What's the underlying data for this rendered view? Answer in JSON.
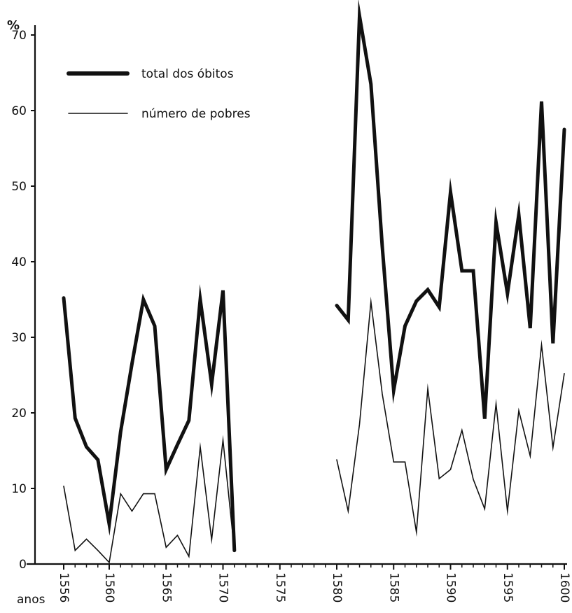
{
  "chart_data": {
    "type": "line",
    "title": "",
    "ylabel": "%",
    "xlabel": "anos",
    "xlim": [
      1556,
      1600
    ],
    "ylim": [
      0,
      70
    ],
    "xticks": [
      1556,
      1560,
      1565,
      1570,
      1575,
      1580,
      1585,
      1590,
      1595,
      1600
    ],
    "yticks": [
      0,
      10,
      20,
      30,
      40,
      50,
      60,
      70
    ],
    "legend_position": "top-left",
    "grid": false,
    "series": [
      {
        "name": "total dos óbitos",
        "style": "thick",
        "color": "#111111",
        "segments": [
          [
            [
              1556,
              35.2
            ],
            [
              1557,
              19.3
            ],
            [
              1558,
              15.5
            ],
            [
              1559,
              13.8
            ],
            [
              1560,
              5.3
            ],
            [
              1561,
              17.5
            ],
            [
              1562,
              26.5
            ],
            [
              1563,
              35.0
            ],
            [
              1564,
              31.5
            ],
            [
              1565,
              12.5
            ],
            [
              1566,
              15.8
            ],
            [
              1567,
              19.0
            ],
            [
              1568,
              35.0
            ],
            [
              1569,
              23.8
            ],
            [
              1570,
              36.2
            ],
            [
              1571,
              1.8
            ]
          ],
          [
            [
              1580,
              34.2
            ],
            [
              1581,
              32.3
            ],
            [
              1582,
              72.5
            ],
            [
              1583,
              63.5
            ],
            [
              1584,
              42.0
            ],
            [
              1585,
              23.0
            ],
            [
              1586,
              31.5
            ],
            [
              1587,
              34.8
            ],
            [
              1588,
              36.3
            ],
            [
              1589,
              34.0
            ],
            [
              1590,
              49.2
            ],
            [
              1591,
              38.8
            ],
            [
              1592,
              38.8
            ],
            [
              1593,
              19.2
            ],
            [
              1594,
              45.2
            ],
            [
              1595,
              35.8
            ],
            [
              1596,
              46.2
            ],
            [
              1597,
              31.2
            ],
            [
              1598,
              61.2
            ],
            [
              1599,
              29.2
            ],
            [
              1600,
              57.5
            ]
          ]
        ]
      },
      {
        "name": "número de pobres",
        "style": "thin",
        "color": "#111111",
        "segments": [
          [
            [
              1556,
              10.3
            ],
            [
              1557,
              1.8
            ],
            [
              1558,
              3.3
            ],
            [
              1559,
              1.8
            ],
            [
              1560,
              0.2
            ],
            [
              1561,
              9.3
            ],
            [
              1562,
              7.0
            ],
            [
              1563,
              9.3
            ],
            [
              1564,
              9.3
            ],
            [
              1565,
              2.2
            ],
            [
              1566,
              3.8
            ],
            [
              1567,
              1.0
            ],
            [
              1568,
              15.5
            ],
            [
              1569,
              3.2
            ],
            [
              1570,
              16.4
            ],
            [
              1571,
              1.8
            ]
          ],
          [
            [
              1580,
              13.8
            ],
            [
              1581,
              7.0
            ],
            [
              1582,
              18.5
            ],
            [
              1583,
              34.7
            ],
            [
              1584,
              22.5
            ],
            [
              1585,
              13.5
            ],
            [
              1586,
              13.5
            ],
            [
              1587,
              4.2
            ],
            [
              1588,
              23.2
            ],
            [
              1589,
              11.3
            ],
            [
              1590,
              12.5
            ],
            [
              1591,
              17.7
            ],
            [
              1592,
              11.2
            ],
            [
              1593,
              7.3
            ],
            [
              1594,
              21.2
            ],
            [
              1595,
              7.0
            ],
            [
              1596,
              20.3
            ],
            [
              1597,
              14.3
            ],
            [
              1598,
              29.0
            ],
            [
              1599,
              15.4
            ],
            [
              1600,
              25.2
            ]
          ]
        ]
      }
    ]
  }
}
